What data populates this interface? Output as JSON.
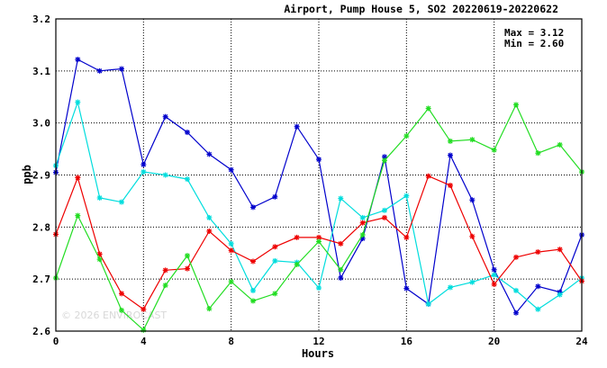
{
  "chart_data": {
    "type": "line",
    "title": "Airport, Pump House 5, SO2 20220619-20220622",
    "xlabel": "Hours",
    "ylabel": "ppb",
    "xlim": [
      0,
      24
    ],
    "ylim": [
      2.6,
      3.2
    ],
    "x_ticks": [
      "0",
      "4",
      "8",
      "12",
      "16",
      "20",
      "24"
    ],
    "y_ticks": [
      "2.6",
      "2.7",
      "2.8",
      "2.9",
      "3.0",
      "3.1",
      "3.2"
    ],
    "grid": true,
    "stats": {
      "max": "Max = 3.12",
      "min": "Min = 2.60"
    },
    "watermark": "© 2026 ENVIROCAST",
    "x": [
      0,
      1,
      2,
      3,
      4,
      5,
      6,
      7,
      8,
      9,
      10,
      11,
      12,
      13,
      14,
      15,
      16,
      17,
      18,
      19,
      20,
      21,
      22,
      23,
      24
    ],
    "series": [
      {
        "color": "#0000cc",
        "values": [
          2.905,
          3.122,
          3.1,
          3.104,
          2.92,
          3.012,
          2.982,
          2.94,
          2.91,
          2.838,
          2.858,
          2.993,
          2.93,
          2.702,
          2.778,
          2.935,
          2.682,
          2.652,
          2.938,
          2.852,
          2.718,
          2.635,
          2.686,
          2.675,
          2.785
        ]
      },
      {
        "color": "#00dddd",
        "values": [
          2.918,
          3.04,
          2.856,
          2.848,
          2.906,
          2.9,
          2.892,
          2.818,
          2.768,
          2.678,
          2.735,
          2.732,
          2.683,
          2.855,
          2.818,
          2.832,
          2.86,
          2.652,
          2.684,
          2.694,
          2.708,
          2.678,
          2.642,
          2.67,
          2.702
        ]
      },
      {
        "color": "#ee0000",
        "values": [
          2.786,
          2.895,
          2.748,
          2.672,
          2.642,
          2.717,
          2.72,
          2.792,
          2.755,
          2.734,
          2.762,
          2.78,
          2.78,
          2.768,
          2.808,
          2.818,
          2.78,
          2.898,
          2.88,
          2.782,
          2.69,
          2.742,
          2.752,
          2.757,
          2.696
        ]
      },
      {
        "color": "#22dd22",
        "values": [
          2.702,
          2.822,
          2.738,
          2.64,
          2.602,
          2.688,
          2.745,
          2.643,
          2.695,
          2.658,
          2.672,
          2.728,
          2.772,
          2.718,
          2.785,
          2.928,
          2.975,
          3.028,
          2.965,
          2.968,
          2.948,
          3.035,
          2.942,
          2.958,
          2.906
        ]
      }
    ]
  }
}
